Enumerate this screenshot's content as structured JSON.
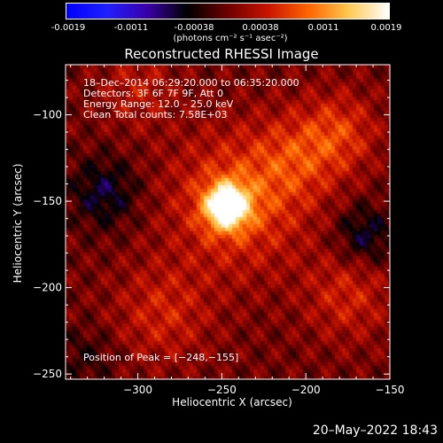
{
  "colorbar": {
    "ticks": [
      "-0.0019",
      "-0.0011",
      "-0.00038",
      "0.00038",
      "0.0011",
      "0.0019"
    ],
    "units": "(photons cm⁻² s⁻¹ asec⁻²)",
    "colors": [
      "#0000ff",
      "#2020ff",
      "#3a00a8",
      "#000000",
      "#6e0000",
      "#c81400",
      "#ff6400",
      "#ffc850",
      "#ffffff"
    ]
  },
  "title": "Reconstructed RHESSI Image",
  "footer_date": "20–May–2022 18:43",
  "chart_data": {
    "type": "heatmap",
    "title": "Reconstructed RHESSI Image",
    "xlabel": "Heliocentric X (arcsec)",
    "ylabel": "Heliocentric Y (arcsec)",
    "xlim": [
      -343,
      -150
    ],
    "ylim": [
      -253,
      -71
    ],
    "xticks": [
      -300,
      -250,
      -200,
      -150
    ],
    "yticks": [
      -250,
      -200,
      -150,
      -100
    ],
    "xtick_labels": [
      "−300",
      "−250",
      "−200",
      "−150"
    ],
    "ytick_labels": [
      "−250",
      "−200",
      "−150",
      "−100"
    ],
    "info_lines": [
      "18–Dec–2014 06:29:20.000 to 06:35:20.000",
      "Detectors: 3F 6F 7F 9F, Att 0",
      "Energy Range: 12.0 – 25.0 keV",
      "Clean    Total counts: 7.58E+03"
    ],
    "peak_label": "Position of Peak = [−248,−155]",
    "peak": [
      -248,
      -155
    ],
    "color_range": [
      -0.0019,
      0.0019
    ],
    "sources": [
      {
        "kind": "peak",
        "x": -247,
        "y": -153,
        "amplitude": 0.0019,
        "sigma": 9
      },
      {
        "kind": "halo",
        "x": -240,
        "y": -150,
        "amplitude": 0.0008,
        "sigma": 28
      },
      {
        "kind": "arm",
        "x": -205,
        "y": -125,
        "amplitude": 0.0005,
        "sigma": 18
      },
      {
        "kind": "arm",
        "x": -180,
        "y": -110,
        "amplitude": 0.0006,
        "sigma": 16
      },
      {
        "kind": "arm",
        "x": -175,
        "y": -205,
        "amplitude": 0.0005,
        "sigma": 18
      },
      {
        "kind": "arm",
        "x": -285,
        "y": -215,
        "amplitude": 0.0005,
        "sigma": 20
      },
      {
        "kind": "arm",
        "x": -300,
        "y": -85,
        "amplitude": 0.0004,
        "sigma": 16
      },
      {
        "kind": "negative",
        "x": -320,
        "y": -145,
        "amplitude": -0.0006,
        "sigma": 14
      },
      {
        "kind": "negative",
        "x": -165,
        "y": -170,
        "amplitude": -0.0006,
        "sigma": 12
      },
      {
        "kind": "negative",
        "x": -330,
        "y": -240,
        "amplitude": -0.0003,
        "sigma": 12
      }
    ]
  }
}
